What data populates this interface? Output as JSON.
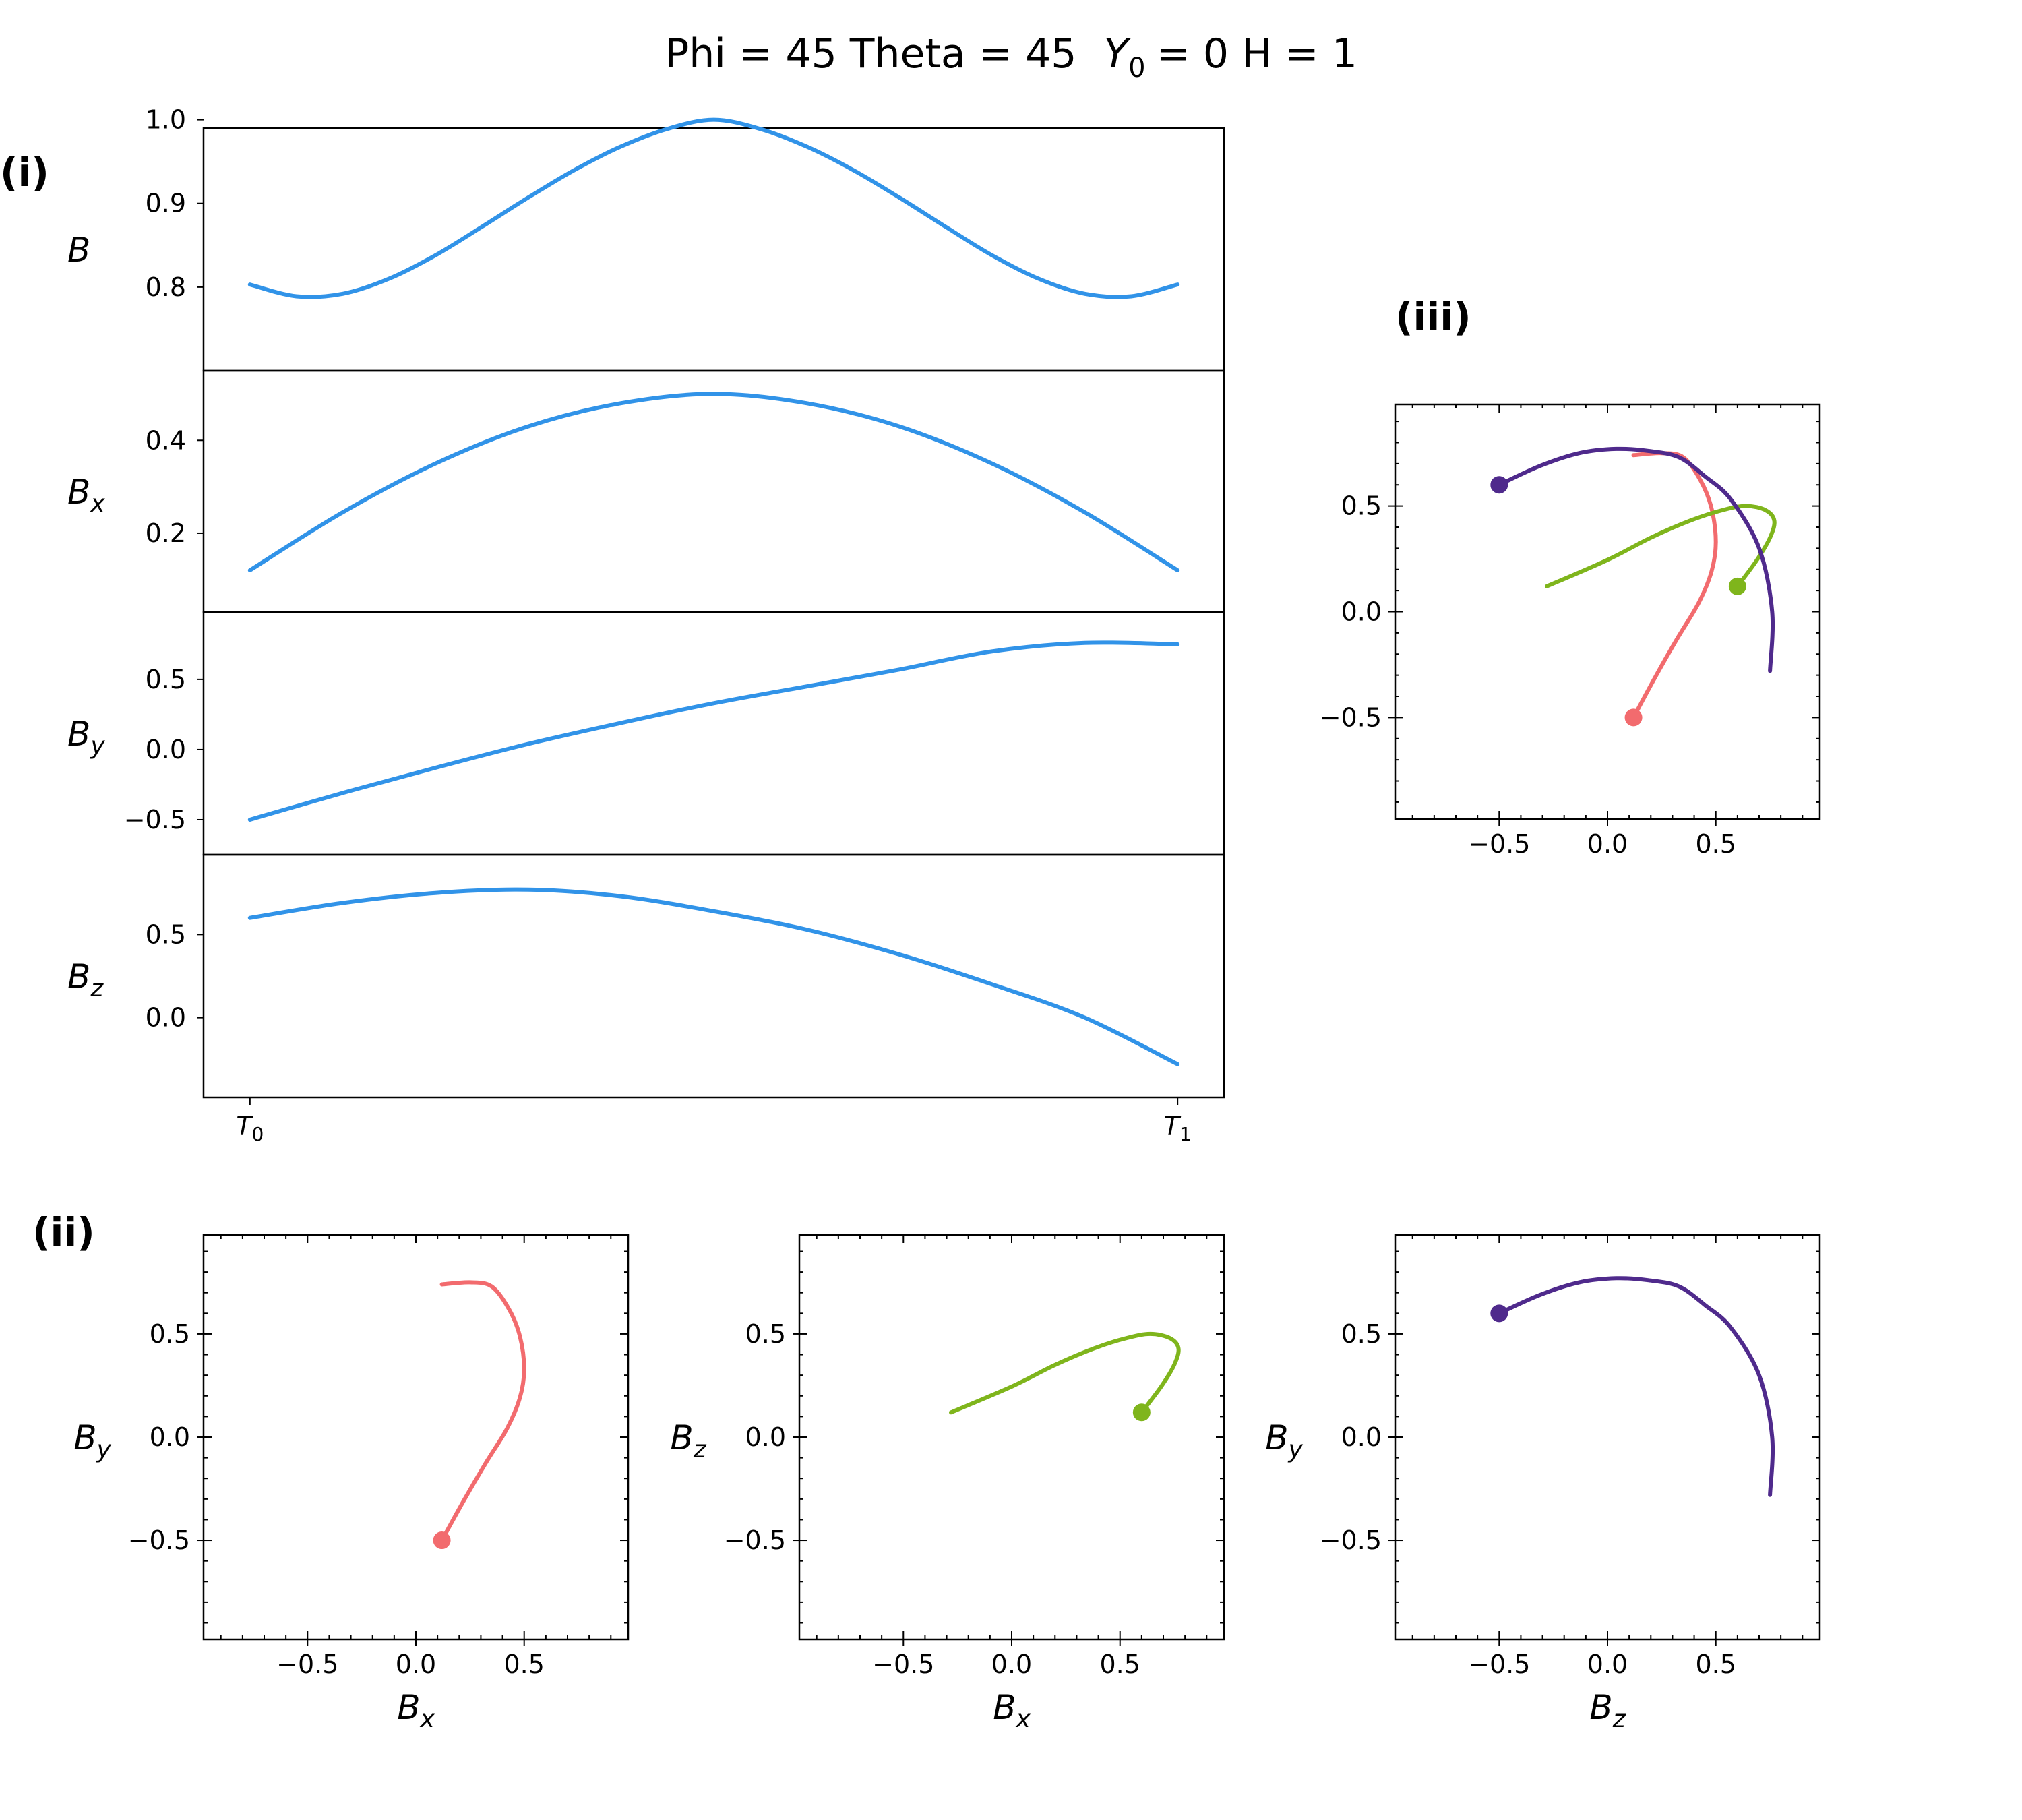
{
  "title": {
    "phi_part": "Phi = 45  Theta = 45",
    "y_sym": "Y",
    "y_sub": "0",
    "y_rest": "= 0  H = 1"
  },
  "panel_labels": {
    "i": "(i)",
    "ii": "(ii)",
    "iii": "(iii)"
  },
  "colors": {
    "line": "#3193E8",
    "red": "#F26B6E",
    "green": "#7FB51C",
    "purple": "#4F2A8C"
  },
  "chart_data": [
    {
      "id": "B",
      "type": "line",
      "ylabel": "B",
      "ylabel_sub": "",
      "xlim": [
        -0.05,
        1.05
      ],
      "ylim": [
        0.7,
        0.99
      ],
      "ylim_note": "",
      "yticks": [
        0.8,
        0.9,
        1.0
      ],
      "ytick_labels": [
        "0.8",
        "0.9",
        "1.0"
      ],
      "x": [
        0,
        0.05,
        0.1,
        0.15,
        0.2,
        0.25,
        0.3,
        0.35,
        0.4,
        0.45,
        0.5,
        0.55,
        0.6,
        0.65,
        0.7,
        0.75,
        0.8,
        0.85,
        0.9,
        0.95,
        1.0
      ],
      "y": [
        0.803,
        0.789,
        0.792,
        0.81,
        0.838,
        0.872,
        0.907,
        0.94,
        0.968,
        0.989,
        1.0,
        0.989,
        0.968,
        0.94,
        0.907,
        0.872,
        0.838,
        0.81,
        0.792,
        0.789,
        0.803
      ]
    },
    {
      "id": "Bx",
      "type": "line",
      "ylabel": "B",
      "ylabel_sub": "x",
      "xlim": [
        -0.05,
        1.05
      ],
      "ylim": [
        0.03,
        0.55
      ],
      "yticks": [
        0.2,
        0.4
      ],
      "ytick_labels": [
        "0.2",
        "0.4"
      ],
      "x": [
        0,
        0.1,
        0.2,
        0.3,
        0.4,
        0.5,
        0.6,
        0.7,
        0.8,
        0.9,
        1.0
      ],
      "y": [
        0.12,
        0.245,
        0.35,
        0.43,
        0.48,
        0.5,
        0.48,
        0.43,
        0.35,
        0.245,
        0.12
      ]
    },
    {
      "id": "By",
      "type": "line",
      "ylabel": "B",
      "ylabel_sub": "y",
      "xlim": [
        -0.05,
        1.05
      ],
      "ylim": [
        -0.75,
        0.98
      ],
      "yticks": [
        -0.5,
        0.0,
        0.5
      ],
      "ytick_labels": [
        "−0.5",
        "0.0",
        "0.5"
      ],
      "x": [
        0,
        0.1,
        0.2,
        0.3,
        0.4,
        0.5,
        0.6,
        0.7,
        0.8,
        0.9,
        1.0
      ],
      "y": [
        -0.5,
        -0.31,
        -0.13,
        0.04,
        0.19,
        0.33,
        0.45,
        0.57,
        0.7,
        0.76,
        0.75
      ]
    },
    {
      "id": "Bz",
      "type": "line",
      "ylabel": "B",
      "ylabel_sub": "z",
      "xlim": [
        -0.05,
        1.05
      ],
      "ylim": [
        -0.48,
        0.98
      ],
      "yticks": [
        0.0,
        0.5
      ],
      "ytick_labels": [
        "0.0",
        "0.5"
      ],
      "xtick_labels": [
        "T",
        "T"
      ],
      "xtick_subs": [
        "0",
        "1"
      ],
      "x": [
        0,
        0.1,
        0.2,
        0.3,
        0.4,
        0.5,
        0.6,
        0.7,
        0.8,
        0.9,
        1.0
      ],
      "y": [
        0.6,
        0.69,
        0.75,
        0.77,
        0.73,
        0.64,
        0.53,
        0.38,
        0.2,
        0.0,
        -0.28
      ]
    },
    {
      "id": "Bx-By",
      "type": "line",
      "xlabel": "B",
      "xlabel_sub": "x",
      "ylabel": "B",
      "ylabel_sub": "y",
      "xlim": [
        -0.98,
        0.98
      ],
      "ylim": [
        -0.98,
        0.98
      ],
      "ticks": [
        -0.5,
        0.0,
        0.5
      ],
      "tick_labels": [
        "−0.5",
        "0.0",
        "0.5"
      ],
      "x": [
        0.12,
        0.22,
        0.32,
        0.42,
        0.48,
        0.5,
        0.48,
        0.43,
        0.35,
        0.25,
        0.12
      ],
      "y": [
        -0.5,
        -0.31,
        -0.13,
        0.04,
        0.19,
        0.33,
        0.49,
        0.62,
        0.73,
        0.75,
        0.74
      ]
    },
    {
      "id": "Bx-Bz",
      "type": "line",
      "xlabel": "B",
      "xlabel_sub": "x",
      "ylabel": "B",
      "ylabel_sub": "z",
      "xlim": [
        -0.98,
        0.98
      ],
      "ylim": [
        -0.98,
        0.98
      ],
      "ticks": [
        -0.5,
        0.0,
        0.5
      ],
      "tick_labels": [
        "−0.5",
        "0.0",
        "0.5"
      ],
      "x": [
        0.6,
        0.69,
        0.75,
        0.77,
        0.73,
        0.64,
        0.53,
        0.38,
        0.2,
        0.0,
        -0.28
      ],
      "y": [
        0.12,
        0.245,
        0.35,
        0.43,
        0.48,
        0.5,
        0.48,
        0.43,
        0.35,
        0.245,
        0.12
      ]
    },
    {
      "id": "Bz-By",
      "type": "line",
      "xlabel": "B",
      "xlabel_sub": "z",
      "ylabel": "B",
      "ylabel_sub": "y",
      "xlim": [
        -0.98,
        0.98
      ],
      "ylim": [
        -0.98,
        0.98
      ],
      "ticks": [
        -0.5,
        0.0,
        0.5
      ],
      "tick_labels": [
        "−0.5",
        "0.0",
        "0.5"
      ],
      "x": [
        -0.5,
        -0.31,
        -0.13,
        0.04,
        0.19,
        0.33,
        0.45,
        0.57,
        0.7,
        0.76,
        0.75
      ],
      "y": [
        0.6,
        0.69,
        0.75,
        0.77,
        0.76,
        0.73,
        0.64,
        0.53,
        0.3,
        0.0,
        -0.28
      ]
    },
    {
      "id": "combined",
      "type": "line",
      "xlim": [
        -0.98,
        0.98
      ],
      "ylim": [
        -0.98,
        0.98
      ],
      "ticks": [
        -0.5,
        0.0,
        0.5
      ],
      "tick_labels": [
        "−0.5",
        "0.0",
        "0.5"
      ],
      "series": [
        "Bx-By",
        "Bx-Bz",
        "Bz-By"
      ]
    }
  ]
}
